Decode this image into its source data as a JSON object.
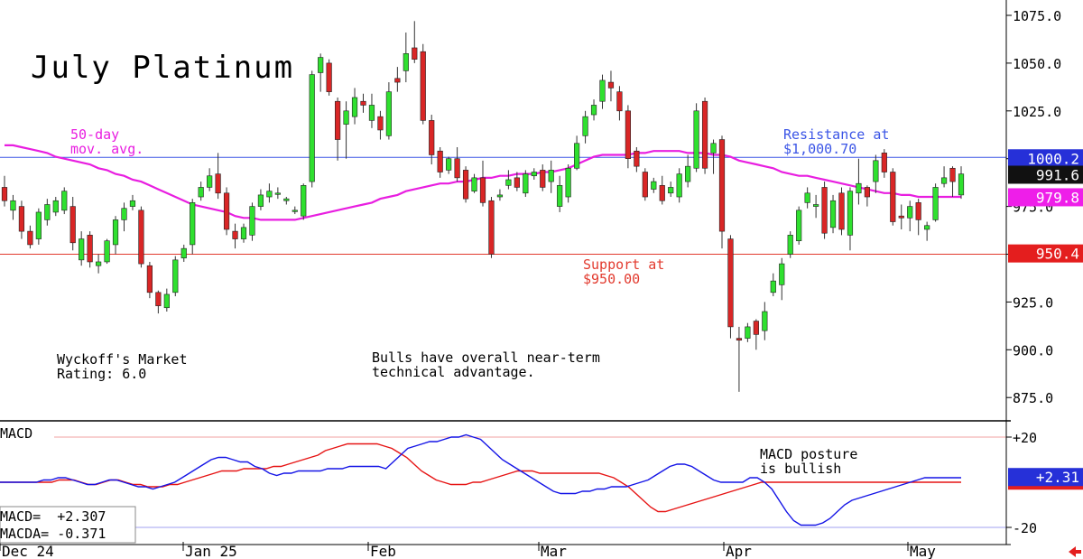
{
  "chart_data": {
    "type": "candlestick",
    "title": "July Platinum",
    "price_axis": {
      "ylim": [
        870,
        1082
      ],
      "ticks": [
        "1075.0",
        "1050.0",
        "1025.0",
        "1000.0",
        "975.0",
        "950.0",
        "925.0",
        "900.0",
        "875.0"
      ]
    },
    "x_labels": [
      "Dec 24",
      "Jan 25",
      "Feb",
      "Mar",
      "Apr",
      "May"
    ],
    "candles": [
      [
        985,
        978,
        991,
        975
      ],
      [
        973,
        978,
        981,
        968
      ],
      [
        975,
        962,
        978,
        958
      ],
      [
        962,
        955,
        965,
        953
      ],
      [
        958,
        972,
        974,
        955
      ],
      [
        968,
        976,
        979,
        965
      ],
      [
        972,
        978,
        980,
        970
      ],
      [
        973,
        983,
        985,
        971
      ],
      [
        975,
        956,
        980,
        952
      ],
      [
        947,
        958,
        962,
        944
      ],
      [
        960,
        946,
        962,
        943
      ],
      [
        944,
        946,
        950,
        940
      ],
      [
        946,
        957,
        958,
        945
      ],
      [
        955,
        968,
        970,
        950
      ],
      [
        968,
        974,
        977,
        962
      ],
      [
        975,
        978,
        981,
        973
      ],
      [
        973,
        945,
        975,
        943
      ],
      [
        944,
        930,
        946,
        927
      ],
      [
        930,
        923,
        931,
        919
      ],
      [
        922,
        929,
        932,
        920
      ],
      [
        930,
        947,
        949,
        928
      ],
      [
        948,
        953,
        955,
        946
      ],
      [
        955,
        977,
        979,
        950
      ],
      [
        980,
        985,
        988,
        978
      ],
      [
        985,
        991,
        995,
        983
      ],
      [
        992,
        982,
        1003,
        979
      ],
      [
        982,
        963,
        985,
        960
      ],
      [
        962,
        958,
        966,
        953
      ],
      [
        958,
        964,
        966,
        956
      ],
      [
        960,
        975,
        977,
        957
      ],
      [
        975,
        981,
        984,
        973
      ],
      [
        980,
        983,
        987,
        977
      ],
      [
        982,
        982,
        985,
        979
      ],
      [
        978,
        979,
        980,
        976
      ],
      [
        973,
        973,
        975,
        971
      ],
      [
        970,
        986,
        987,
        968
      ],
      [
        988,
        1044,
        1046,
        985
      ],
      [
        1045,
        1053,
        1055,
        1035
      ],
      [
        1050,
        1035,
        1052,
        1033
      ],
      [
        1030,
        1010,
        1032,
        999
      ],
      [
        1018,
        1025,
        1030,
        1000
      ],
      [
        1022,
        1032,
        1037,
        1018
      ],
      [
        1030,
        1028,
        1034,
        1024
      ],
      [
        1020,
        1028,
        1034,
        1016
      ],
      [
        1022,
        1015,
        1025,
        1010
      ],
      [
        1012,
        1035,
        1040,
        1010
      ],
      [
        1042,
        1040,
        1048,
        1035
      ],
      [
        1046,
        1055,
        1066,
        1040
      ],
      [
        1058,
        1052,
        1072,
        1050
      ],
      [
        1056,
        1020,
        1060,
        1018
      ],
      [
        1020,
        1002,
        1023,
        997
      ],
      [
        1004,
        993,
        1006,
        990
      ],
      [
        994,
        1000,
        1001,
        992
      ],
      [
        1000,
        990,
        1006,
        988
      ],
      [
        994,
        979,
        996,
        977
      ],
      [
        983,
        990,
        992,
        982
      ],
      [
        990,
        977,
        999,
        975
      ],
      [
        978,
        950,
        980,
        948
      ],
      [
        980,
        981,
        984,
        978
      ],
      [
        986,
        989,
        994,
        984
      ],
      [
        990,
        985,
        993,
        983
      ],
      [
        982,
        992,
        994,
        980
      ],
      [
        991,
        993,
        995,
        989
      ],
      [
        994,
        985,
        997,
        983
      ],
      [
        988,
        994,
        999,
        982
      ],
      [
        975,
        986,
        991,
        972
      ],
      [
        980,
        995,
        997,
        977
      ],
      [
        995,
        1008,
        1012,
        994
      ],
      [
        1012,
        1022,
        1025,
        1008
      ],
      [
        1023,
        1028,
        1031,
        1020
      ],
      [
        1030,
        1041,
        1044,
        1026
      ],
      [
        1040,
        1037,
        1046,
        1030
      ],
      [
        1035,
        1025,
        1038,
        1020
      ],
      [
        1025,
        1000,
        1028,
        995
      ],
      [
        1004,
        996,
        1006,
        993
      ],
      [
        993,
        980,
        995,
        978
      ],
      [
        984,
        988,
        990,
        982
      ],
      [
        986,
        978,
        991,
        976
      ],
      [
        982,
        985,
        988,
        980
      ],
      [
        980,
        992,
        995,
        977
      ],
      [
        988,
        996,
        1002,
        985
      ],
      [
        995,
        1025,
        1029,
        993
      ],
      [
        1030,
        995,
        1032,
        992
      ],
      [
        1003,
        1008,
        1010,
        992
      ],
      [
        1010,
        962,
        1012,
        953
      ],
      [
        958,
        912,
        960,
        906
      ],
      [
        906,
        905,
        912,
        878
      ],
      [
        906,
        912,
        914,
        904
      ],
      [
        915,
        908,
        916,
        900
      ],
      [
        910,
        920,
        925,
        905
      ],
      [
        930,
        936,
        940,
        928
      ],
      [
        934,
        945,
        948,
        926
      ],
      [
        950,
        960,
        962,
        948
      ],
      [
        957,
        973,
        975,
        955
      ],
      [
        977,
        982,
        985,
        974
      ],
      [
        975,
        976,
        981,
        969
      ],
      [
        985,
        961,
        988,
        958
      ],
      [
        964,
        978,
        981,
        961
      ],
      [
        982,
        963,
        985,
        960
      ],
      [
        960,
        983,
        985,
        952
      ],
      [
        982,
        987,
        1000,
        976
      ],
      [
        985,
        980,
        986,
        975
      ],
      [
        988,
        999,
        1002,
        982
      ],
      [
        1003,
        993,
        1005,
        990
      ],
      [
        993,
        967,
        995,
        965
      ],
      [
        970,
        969,
        976,
        963
      ],
      [
        969,
        975,
        978,
        962
      ],
      [
        977,
        968,
        979,
        960
      ],
      [
        963,
        965,
        967,
        957
      ],
      [
        968,
        985,
        987,
        967
      ],
      [
        987,
        990,
        996,
        985
      ],
      [
        995,
        988,
        996,
        980
      ],
      [
        981,
        992,
        996,
        979
      ]
    ],
    "moving_average": {
      "name": "50-day mov. avg.",
      "values": [
        1007,
        1007,
        1006,
        1005,
        1004,
        1003,
        1001,
        1000,
        999,
        998,
        997,
        995,
        994,
        992,
        991,
        989,
        988,
        986,
        984,
        982,
        980,
        978,
        976,
        975,
        974,
        973,
        972,
        970,
        969,
        969,
        968,
        968,
        968,
        968,
        968,
        969,
        970,
        971,
        972,
        973,
        974,
        975,
        976,
        977,
        979,
        980,
        981,
        983,
        984,
        985,
        986,
        987,
        987,
        988,
        988,
        989,
        990,
        990,
        991,
        991,
        992,
        992,
        992,
        993,
        993,
        994,
        995,
        997,
        999,
        1001,
        1002,
        1002,
        1002,
        1002,
        1003,
        1003,
        1004,
        1004,
        1004,
        1004,
        1003,
        1003,
        1003,
        1002,
        1002,
        1001,
        999,
        998,
        997,
        996,
        995,
        993,
        992,
        991,
        991,
        990,
        989,
        988,
        987,
        986,
        985,
        984,
        983,
        982,
        982,
        981,
        981,
        980,
        980,
        980,
        980,
        980,
        980
      ]
    },
    "horizontal_lines": [
      {
        "name": "resistance",
        "value": 1000.7,
        "color": "#3b55e6"
      },
      {
        "name": "support",
        "value": 950.0,
        "color": "#e23a2e"
      }
    ],
    "price_tags": [
      {
        "value": 1000.2,
        "label": "1000.2",
        "bg": "#2630d8",
        "fg": "#ffffff"
      },
      {
        "value": 991.6,
        "label": "991.6",
        "bg": "#111111",
        "fg": "#ffffff"
      },
      {
        "value": 979.8,
        "label": "979.8",
        "bg": "#ee1ee9",
        "fg": "#ffffff"
      },
      {
        "value": 950.4,
        "label": "950.4",
        "bg": "#e41e1e",
        "fg": "#ffffff"
      }
    ],
    "macd": {
      "ylim": [
        -20,
        20
      ],
      "ticks": [
        "+20",
        "-20"
      ],
      "macd": [
        0,
        0,
        0,
        0,
        0,
        0,
        1,
        1,
        2,
        2,
        1,
        0,
        -1,
        -1,
        0,
        1,
        1,
        0,
        -1,
        -2,
        -2,
        -3,
        -2,
        -1,
        0,
        2,
        4,
        6,
        8,
        10,
        11,
        11,
        10,
        9,
        9,
        7,
        6,
        4,
        3,
        4,
        4,
        5,
        5,
        5,
        5,
        6,
        6,
        6,
        7,
        7,
        7,
        7,
        7,
        6,
        9,
        12,
        15,
        16,
        17,
        18,
        18,
        19,
        20,
        20,
        21,
        20,
        19,
        16,
        13,
        10,
        8,
        6,
        4,
        2,
        0,
        -2,
        -4,
        -5,
        -5,
        -5,
        -4,
        -4,
        -3,
        -3,
        -2,
        -2,
        -2,
        -1,
        0,
        1,
        3,
        5,
        7,
        8,
        8,
        7,
        5,
        3,
        1,
        0,
        0,
        0,
        0,
        2,
        2,
        0,
        -3,
        -8,
        -13,
        -17,
        -19,
        -19,
        -19,
        -18,
        -16,
        -13,
        -10,
        -8,
        -7,
        -6,
        -5,
        -4,
        -3,
        -2,
        -1,
        0,
        1,
        2,
        2,
        2,
        2,
        2,
        2
      ],
      "signal": [
        0,
        0,
        0,
        0,
        0,
        0,
        0,
        0,
        1,
        1,
        1,
        0,
        -1,
        -1,
        0,
        1,
        1,
        0,
        -1,
        -1,
        -2,
        -2,
        -2,
        -1,
        -1,
        0,
        1,
        2,
        3,
        4,
        5,
        5,
        5,
        6,
        6,
        6,
        6,
        7,
        7,
        8,
        9,
        10,
        11,
        12,
        14,
        15,
        16,
        17,
        17,
        17,
        17,
        17,
        16,
        15,
        13,
        11,
        8,
        5,
        3,
        1,
        0,
        -1,
        -1,
        -1,
        0,
        0,
        1,
        2,
        3,
        4,
        5,
        5,
        5,
        4,
        4,
        4,
        4,
        4,
        4,
        4,
        4,
        4,
        3,
        2,
        0,
        -2,
        -5,
        -8,
        -11,
        -13,
        -13,
        -12,
        -11,
        -10,
        -9,
        -8,
        -7,
        -6,
        -5,
        -4,
        -3,
        -2,
        -1,
        0,
        0,
        0,
        0,
        0,
        0,
        0,
        0,
        0,
        0,
        0,
        0,
        0,
        0,
        0,
        0,
        0,
        0,
        0,
        0,
        0,
        0,
        0,
        0,
        0,
        0,
        0,
        0
      ],
      "macd_color": "#1414e6",
      "signal_color": "#e61414",
      "tags": [
        {
          "value": 2.31,
          "label": "+2.31",
          "bg": "#2630d8",
          "fg": "#ffffff"
        }
      ]
    },
    "colors": {
      "up": "#2fe02f",
      "down": "#d92626",
      "ma": "#e81ee0"
    }
  },
  "annotations": {
    "title": "July Platinum",
    "ma_label_1": "50-day",
    "ma_label_2": "mov. avg.",
    "resistance_1": "Resistance at",
    "resistance_2": "$1,000.70",
    "support_1": "Support at",
    "support_2": "$950.00",
    "wyckoff_1": "Wyckoff's Market",
    "wyckoff_2": "Rating: 6.0",
    "bulls_1": "Bulls have overall near-term",
    "bulls_2": "technical advantage.",
    "macd_title": "MACD",
    "macd_posture_1": "MACD posture",
    "macd_posture_2": "is bullish",
    "macd_readout_1": "MACD=  +2.307",
    "macd_readout_2": "MACDA= -0.371"
  }
}
